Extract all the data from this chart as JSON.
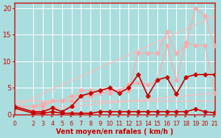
{
  "background_color": "#aadddd",
  "grid_color": "#ffffff",
  "xlabel": "Vent moyen/en rafales ( km/h )",
  "xlabel_color": "#cc0000",
  "xlabel_fontsize": 7,
  "tick_color": "#cc0000",
  "tick_fontsize": 6,
  "ytick_fontsize": 7,
  "xlim": [
    0,
    21
  ],
  "ylim": [
    0,
    21
  ],
  "yticks": [
    0,
    5,
    10,
    15,
    20
  ],
  "xticks": [
    0,
    2,
    3,
    4,
    5,
    6,
    7,
    8,
    9,
    10,
    11,
    12,
    13,
    14,
    15,
    16,
    17,
    18,
    19,
    20,
    21
  ],
  "series": [
    {
      "name": "diagonal_upper_plain",
      "x": [
        0,
        21
      ],
      "y": [
        1.5,
        18.5
      ],
      "color": "#ffbbbb",
      "linewidth": 1.0,
      "marker": null,
      "markersize": 0
    },
    {
      "name": "diagonal_lower_plain",
      "x": [
        0,
        21
      ],
      "y": [
        0.5,
        4.0
      ],
      "color": "#ffbbbb",
      "linewidth": 1.0,
      "marker": null,
      "markersize": 0
    },
    {
      "name": "horizontal_plain",
      "x": [
        0,
        21
      ],
      "y": [
        2.5,
        2.5
      ],
      "color": "#ffbbbb",
      "linewidth": 1.0,
      "marker": null,
      "markersize": 0
    },
    {
      "name": "rafales_upper_pink",
      "x": [
        0,
        2,
        3,
        4,
        5,
        6,
        7,
        8,
        9,
        10,
        11,
        12,
        13,
        14,
        15,
        16,
        17,
        18,
        19,
        20,
        21
      ],
      "y": [
        1.5,
        1.5,
        1.5,
        2.5,
        2.5,
        2.5,
        4.5,
        4.5,
        4.5,
        4.5,
        4.5,
        4.5,
        11.5,
        11.5,
        11.5,
        15.5,
        11.5,
        13.0,
        20.0,
        18.5,
        13.0
      ],
      "color": "#ffaaaa",
      "linewidth": 1.0,
      "marker": "D",
      "markersize": 3
    },
    {
      "name": "vent_moyen_lower_pink",
      "x": [
        0,
        2,
        3,
        4,
        5,
        6,
        7,
        8,
        9,
        10,
        11,
        12,
        13,
        14,
        15,
        16,
        17,
        18,
        19,
        20,
        21
      ],
      "y": [
        1.5,
        1.5,
        2.0,
        2.5,
        2.5,
        3.5,
        3.5,
        3.5,
        4.0,
        4.0,
        4.5,
        5.5,
        6.0,
        5.5,
        6.5,
        13.0,
        6.5,
        13.5,
        13.0,
        13.0,
        4.0
      ],
      "color": "#ffaaaa",
      "linewidth": 1.0,
      "marker": "D",
      "markersize": 3
    },
    {
      "name": "moyen_red",
      "x": [
        0,
        2,
        3,
        4,
        5,
        6,
        7,
        8,
        9,
        10,
        11,
        12,
        13,
        14,
        15,
        16,
        17,
        18,
        19,
        20,
        21
      ],
      "y": [
        1.5,
        0.5,
        0.5,
        1.2,
        0.5,
        1.5,
        3.5,
        4.0,
        4.5,
        5.0,
        4.0,
        5.0,
        7.5,
        3.5,
        6.5,
        7.0,
        3.8,
        7.0,
        7.5,
        7.5,
        7.5
      ],
      "color": "#cc0000",
      "linewidth": 1.3,
      "marker": "D",
      "markersize": 3
    },
    {
      "name": "bottom_red_flat",
      "x": [
        0,
        2,
        3,
        4,
        5,
        6,
        7,
        8,
        9,
        10,
        11,
        12,
        13,
        14,
        15,
        16,
        17,
        18,
        19,
        20,
        21
      ],
      "y": [
        1.2,
        0.2,
        0.2,
        0.5,
        0.2,
        0.2,
        0.2,
        0.2,
        0.5,
        0.5,
        0.5,
        0.5,
        0.5,
        0.5,
        0.5,
        0.5,
        0.5,
        0.5,
        1.0,
        0.5,
        0.3
      ],
      "color": "#cc0000",
      "linewidth": 1.3,
      "marker": "D",
      "markersize": 3
    }
  ],
  "arrow_color": "#cc0000",
  "spine_color": "#cc0000"
}
